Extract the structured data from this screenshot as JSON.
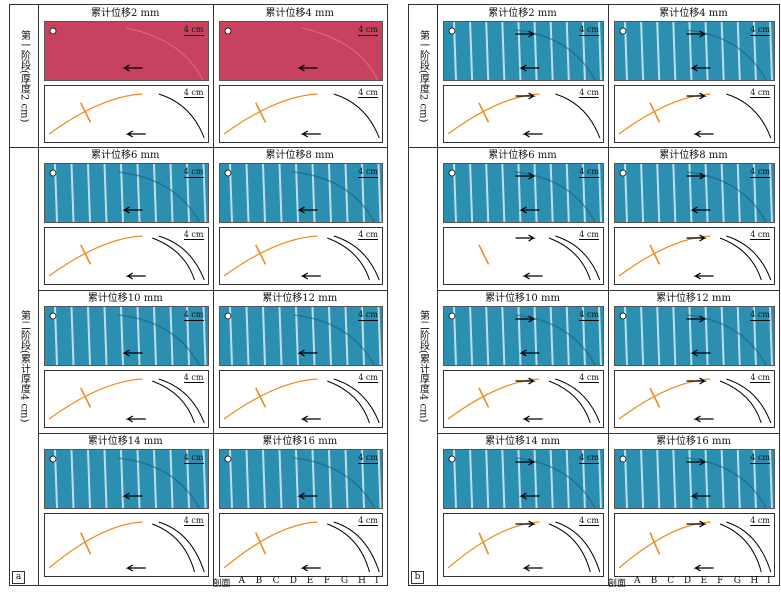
{
  "scale_label": "4 cm",
  "panels": [
    {
      "letter": "a",
      "stages": [
        {
          "label": "第一阶段(厚度2 cm)"
        },
        {
          "label": "第二阶段(累计厚度4 cm)"
        }
      ],
      "cells": [
        {
          "title": "累计位移2 mm",
          "material": "red"
        },
        {
          "title": "累计位移4 mm",
          "material": "red"
        },
        {
          "title": "累计位移6 mm",
          "material": "blue"
        },
        {
          "title": "累计位移8 mm",
          "material": "blue"
        },
        {
          "title": "累计位移10 mm",
          "material": "blue"
        },
        {
          "title": "累计位移12 mm",
          "material": "blue"
        },
        {
          "title": "累计位移14 mm",
          "material": "blue"
        },
        {
          "title": "累计位移16 mm",
          "material": "blue"
        }
      ],
      "profile_prefix": "剖面",
      "profiles": [
        "A",
        "B",
        "C",
        "D",
        "E",
        "F",
        "G",
        "H",
        "I"
      ]
    },
    {
      "letter": "b",
      "stages": [
        {
          "label": "第一阶段(厚度2 cm)"
        },
        {
          "label": "第二阶段(累计厚度4 cm)"
        }
      ],
      "cells": [
        {
          "title": "累计位移2 mm",
          "material": "blue"
        },
        {
          "title": "累计位移4 mm",
          "material": "blue"
        },
        {
          "title": "累计位移6 mm",
          "material": "blue"
        },
        {
          "title": "累计位移8 mm",
          "material": "blue"
        },
        {
          "title": "累计位移10 mm",
          "material": "blue"
        },
        {
          "title": "累计位移12 mm",
          "material": "blue"
        },
        {
          "title": "累计位移14 mm",
          "material": "blue"
        },
        {
          "title": "累计位移16 mm",
          "material": "blue"
        }
      ],
      "profile_prefix": "剖面",
      "profiles": [
        "A",
        "B",
        "C",
        "D",
        "E",
        "F",
        "G",
        "H",
        "I"
      ]
    }
  ],
  "colors": {
    "red": "#c8425f",
    "blue": "#2a8fb0",
    "fold": "#f08a1e"
  }
}
